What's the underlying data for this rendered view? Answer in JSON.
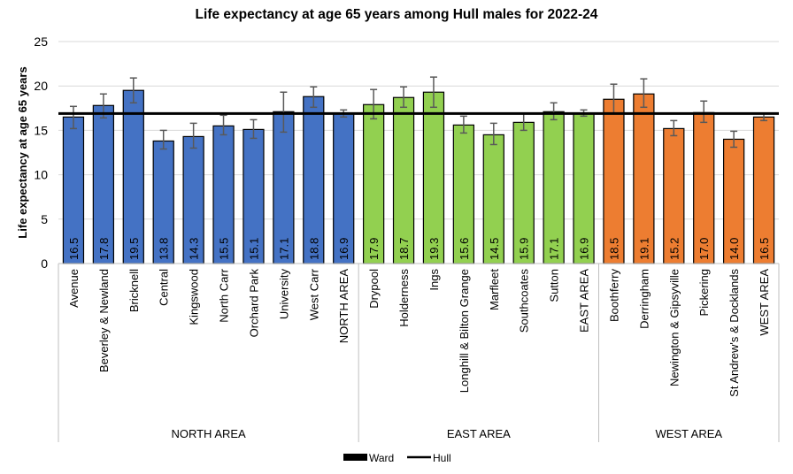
{
  "chart_data": {
    "type": "bar",
    "title": "Life expectancy at age 65 years among Hull males for 2022-24",
    "ylabel": "Life expectancy at age 65 years",
    "xlabel": "",
    "ylim": [
      0,
      25
    ],
    "yticks": [
      0,
      5,
      10,
      15,
      20,
      25
    ],
    "grid": true,
    "legend_position": "bottom",
    "legend": [
      "Ward",
      "Hull"
    ],
    "reference_line": {
      "name": "Hull",
      "value": 16.9
    },
    "groups": [
      {
        "name": "NORTH AREA",
        "color": "#4472c4",
        "categories": [
          "Avenue",
          "Beverley & Newland",
          "Bricknell",
          "Central",
          "Kingswood",
          "North Carr",
          "Orchard Park",
          "University",
          "West Carr",
          "NORTH AREA"
        ],
        "values": [
          16.5,
          17.8,
          19.5,
          13.8,
          14.3,
          15.5,
          15.1,
          17.1,
          18.8,
          16.9
        ],
        "ci_low": [
          15.2,
          16.4,
          18.1,
          12.9,
          13.0,
          14.5,
          14.1,
          14.8,
          17.6,
          16.5
        ],
        "ci_high": [
          17.7,
          19.1,
          20.9,
          15.0,
          15.8,
          16.7,
          16.2,
          19.3,
          19.9,
          17.3
        ]
      },
      {
        "name": "EAST AREA",
        "color": "#92d050",
        "categories": [
          "Drypool",
          "Holderness",
          "Ings",
          "Longhill & Bilton Grange",
          "Marfleet",
          "Southcoates",
          "Sutton",
          "EAST AREA"
        ],
        "values": [
          17.9,
          18.7,
          19.3,
          15.6,
          14.5,
          15.9,
          17.1,
          16.9
        ],
        "ci_low": [
          16.3,
          17.6,
          17.6,
          14.7,
          13.4,
          15.0,
          16.2,
          16.6
        ],
        "ci_high": [
          19.6,
          19.9,
          21.0,
          16.6,
          15.8,
          16.9,
          18.1,
          17.3
        ]
      },
      {
        "name": "WEST AREA",
        "color": "#ed7d31",
        "categories": [
          "Boothferry",
          "Derringham",
          "Newington & Gipsyville",
          "Pickering",
          "St Andrew's & Docklands",
          "WEST AREA"
        ],
        "values": [
          18.5,
          19.1,
          15.2,
          17.0,
          14.0,
          16.5
        ],
        "ci_low": [
          16.9,
          17.6,
          14.4,
          15.9,
          13.1,
          16.1
        ],
        "ci_high": [
          20.2,
          20.8,
          16.1,
          18.3,
          14.9,
          16.9
        ]
      }
    ]
  }
}
